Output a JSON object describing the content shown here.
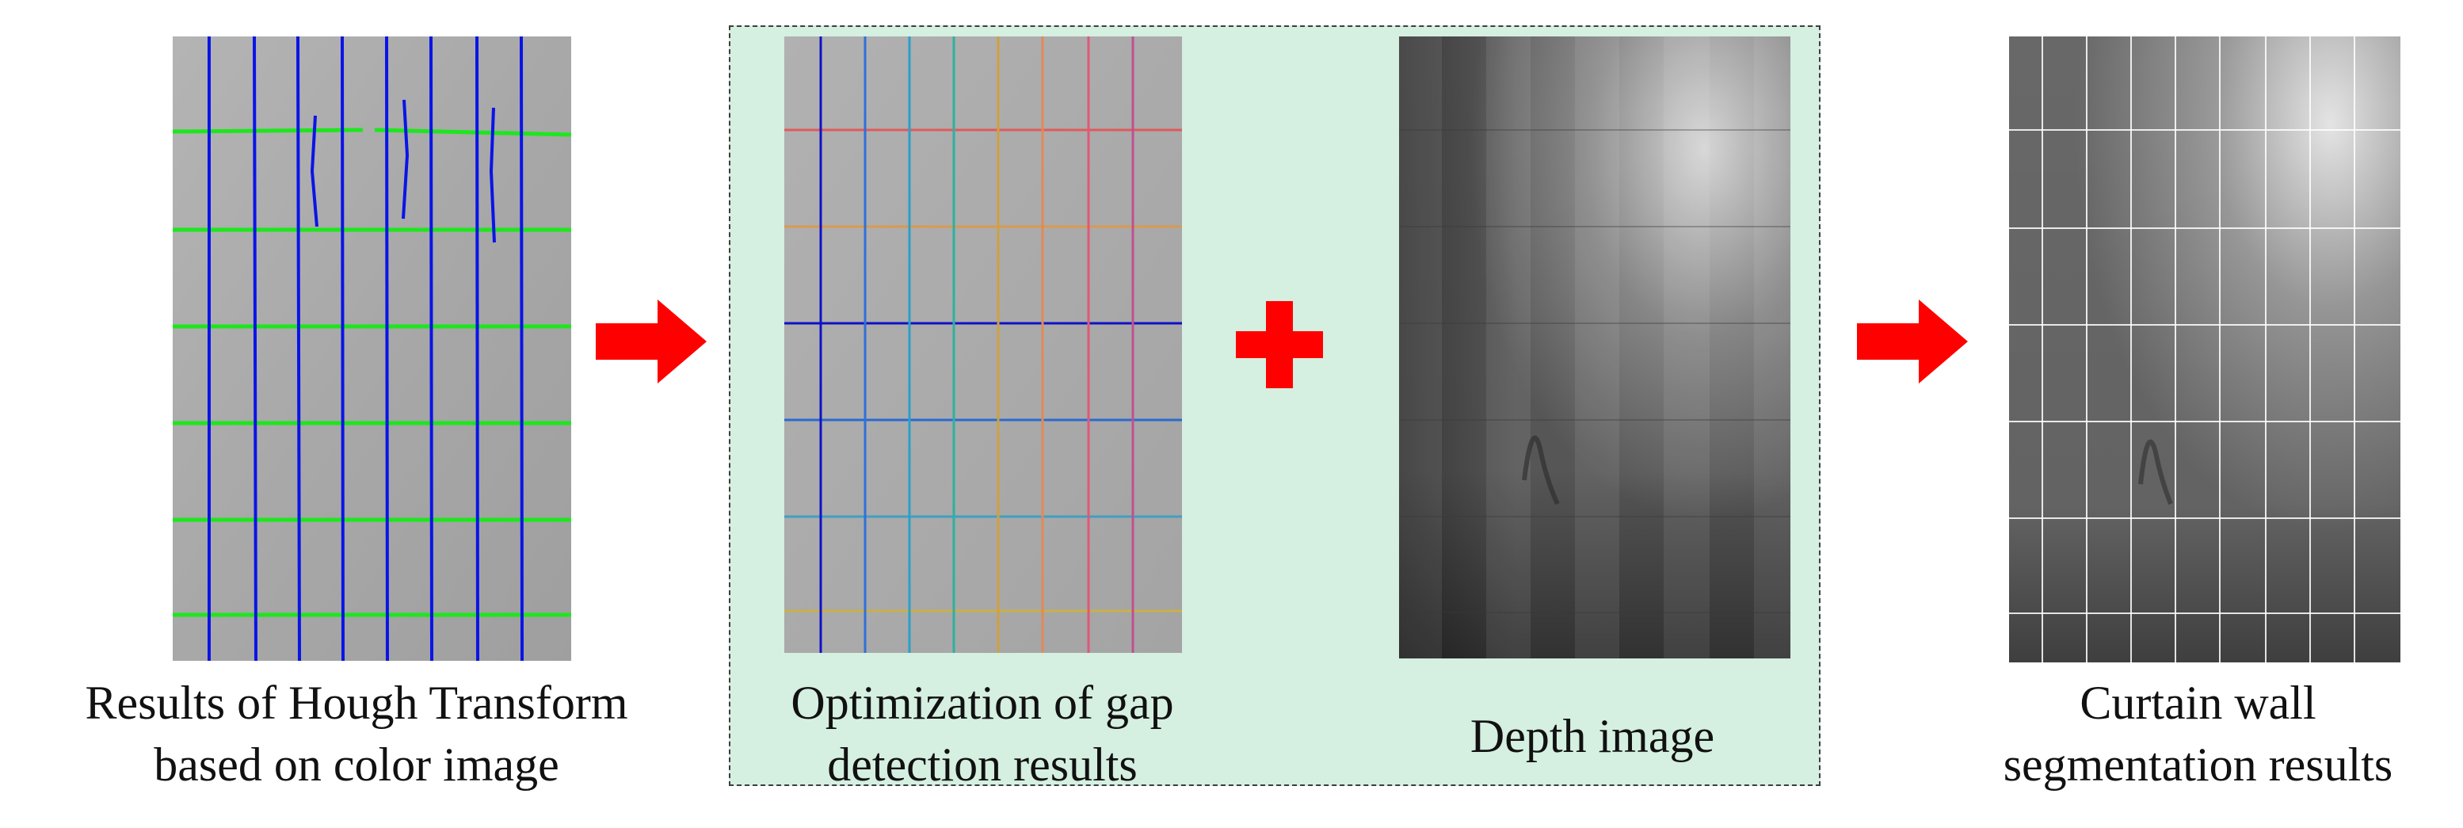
{
  "steps": {
    "hough": {
      "caption_line1": "Results of Hough Transform",
      "caption_line2": "based on color image"
    },
    "optimization": {
      "caption_line1": "Optimization of gap",
      "caption_line2": "detection results"
    },
    "depth": {
      "caption_line1": "Depth image"
    },
    "segmentation": {
      "caption_line1": "Curtain wall",
      "caption_line2": "segmentation results"
    }
  },
  "colors": {
    "arrow": "#ff0000",
    "plus": "#ff0000",
    "group_background": "#d5efe1",
    "hough_vertical_lines": "#0a14e6",
    "hough_horizontal_lines": "#1ee61e",
    "photo_background": "#a9a9a9"
  }
}
